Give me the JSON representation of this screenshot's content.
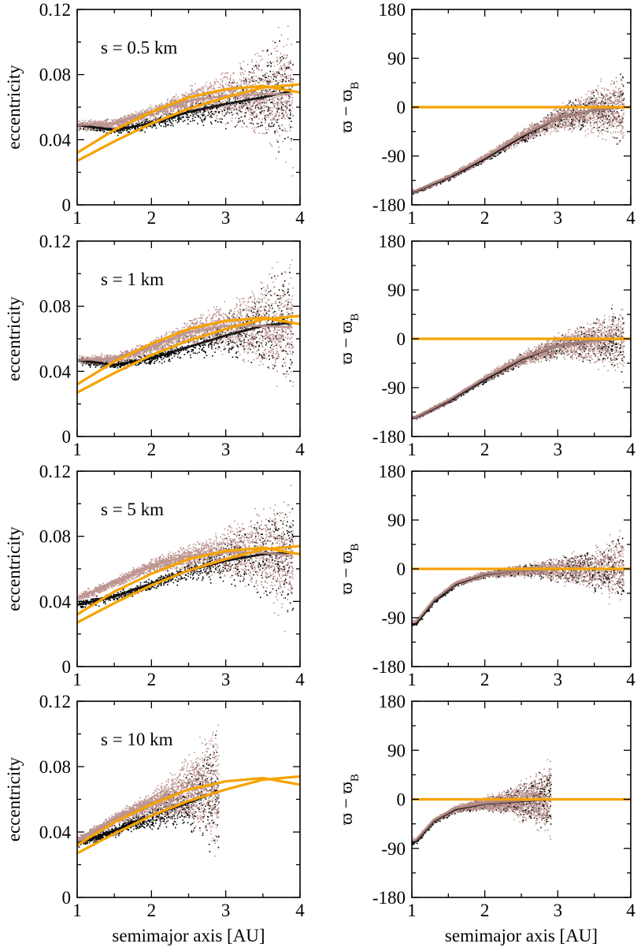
{
  "figure": {
    "xlabel": "semimajor axis  [AU]",
    "colors": {
      "inner_particles": "#000000",
      "outer_particles": "#bc938e",
      "model_curves": "#f5a300"
    }
  },
  "chart_data": [
    {
      "type": "scatter",
      "panel": "ecc-0.5km",
      "title": "s = 0.5 km",
      "xlabel": "semimajor axis  [AU]",
      "ylabel": "eccentricity",
      "xlim": [
        1,
        4
      ],
      "ylim": [
        0,
        0.12
      ],
      "xticks": [
        "1",
        "2",
        "3",
        "4"
      ],
      "yticks": [
        "0",
        "0.04",
        "0.08",
        "0.12"
      ],
      "series": [
        {
          "name": "black particles",
          "x": [
            1.0,
            1.5,
            2.0,
            2.5,
            3.0,
            3.5,
            3.9
          ],
          "y": [
            0.049,
            0.046,
            0.05,
            0.057,
            0.062,
            0.066,
            0.07
          ]
        },
        {
          "name": "pink particles",
          "x": [
            1.0,
            1.5,
            2.0,
            2.5,
            3.0,
            3.5,
            3.9
          ],
          "y": [
            0.049,
            0.05,
            0.057,
            0.064,
            0.067,
            0.068,
            0.068
          ]
        },
        {
          "name": "curve A",
          "x": [
            1.0,
            1.5,
            2.0,
            2.5,
            3.0,
            3.5,
            4.0
          ],
          "y": [
            0.032,
            0.046,
            0.057,
            0.066,
            0.071,
            0.073,
            0.069
          ]
        },
        {
          "name": "curve B",
          "x": [
            1.0,
            1.5,
            2.0,
            2.5,
            3.0,
            3.5,
            4.0
          ],
          "y": [
            0.027,
            0.039,
            0.05,
            0.059,
            0.066,
            0.072,
            0.074
          ]
        }
      ]
    },
    {
      "type": "scatter",
      "panel": "varpi-0.5km",
      "xlabel": "semimajor axis  [AU]",
      "ylabel": "ϖ − ϖ",
      "ylabel_sub": "B",
      "xlim": [
        1,
        4
      ],
      "ylim": [
        -180,
        180
      ],
      "xticks": [
        "1",
        "2",
        "3",
        "4"
      ],
      "yticks": [
        "-180",
        "-90",
        "0",
        "90",
        "180"
      ],
      "series": [
        {
          "name": "black particles",
          "x": [
            1.05,
            1.5,
            2.0,
            2.5,
            3.0,
            3.5,
            3.9
          ],
          "y": [
            -155,
            -130,
            -95,
            -55,
            -20,
            -5,
            0
          ]
        },
        {
          "name": "pink particles",
          "x": [
            1.05,
            1.5,
            2.0,
            2.5,
            3.0,
            3.5,
            3.9
          ],
          "y": [
            -154,
            -128,
            -92,
            -52,
            -20,
            -5,
            0
          ]
        },
        {
          "name": "zero line",
          "x": [
            1.0,
            4.0
          ],
          "y": [
            0,
            0
          ]
        }
      ]
    },
    {
      "type": "scatter",
      "panel": "ecc-1km",
      "title": "s = 1 km",
      "xlabel": "semimajor axis  [AU]",
      "ylabel": "eccentricity",
      "xlim": [
        1,
        4
      ],
      "ylim": [
        0,
        0.12
      ],
      "xticks": [
        "1",
        "2",
        "3",
        "4"
      ],
      "yticks": [
        "0",
        "0.04",
        "0.08",
        "0.12"
      ],
      "series": [
        {
          "name": "black particles",
          "x": [
            1.0,
            1.5,
            2.0,
            2.5,
            3.0,
            3.5,
            3.9
          ],
          "y": [
            0.047,
            0.044,
            0.048,
            0.055,
            0.062,
            0.068,
            0.07
          ]
        },
        {
          "name": "pink particles",
          "x": [
            1.0,
            1.5,
            2.0,
            2.5,
            3.0,
            3.5,
            3.9
          ],
          "y": [
            0.047,
            0.048,
            0.055,
            0.064,
            0.068,
            0.068,
            0.067
          ]
        },
        {
          "name": "curve A",
          "x": [
            1.0,
            1.5,
            2.0,
            2.5,
            3.0,
            3.5,
            4.0
          ],
          "y": [
            0.032,
            0.046,
            0.057,
            0.066,
            0.071,
            0.073,
            0.069
          ]
        },
        {
          "name": "curve B",
          "x": [
            1.0,
            1.5,
            2.0,
            2.5,
            3.0,
            3.5,
            4.0
          ],
          "y": [
            0.027,
            0.039,
            0.05,
            0.059,
            0.066,
            0.072,
            0.074
          ]
        }
      ]
    },
    {
      "type": "scatter",
      "panel": "varpi-1km",
      "xlabel": "semimajor axis  [AU]",
      "ylabel": "ϖ − ϖ",
      "ylabel_sub": "B",
      "xlim": [
        1,
        4
      ],
      "ylim": [
        -180,
        180
      ],
      "xticks": [
        "1",
        "2",
        "3",
        "4"
      ],
      "yticks": [
        "-180",
        "-90",
        "0",
        "90",
        "180"
      ],
      "series": [
        {
          "name": "black particles",
          "x": [
            1.05,
            1.5,
            2.0,
            2.5,
            3.0,
            3.5,
            3.9
          ],
          "y": [
            -145,
            -115,
            -75,
            -38,
            -12,
            -3,
            0
          ]
        },
        {
          "name": "pink particles",
          "x": [
            1.05,
            1.5,
            2.0,
            2.5,
            3.0,
            3.5,
            3.9
          ],
          "y": [
            -144,
            -113,
            -72,
            -36,
            -12,
            -3,
            0
          ]
        },
        {
          "name": "zero line",
          "x": [
            1.0,
            4.0
          ],
          "y": [
            0,
            0
          ]
        }
      ]
    },
    {
      "type": "scatter",
      "panel": "ecc-5km",
      "title": "s = 5 km",
      "xlabel": "semimajor axis  [AU]",
      "ylabel": "eccentricity",
      "xlim": [
        1,
        4
      ],
      "ylim": [
        0,
        0.12
      ],
      "xticks": [
        "1",
        "2",
        "3",
        "4"
      ],
      "yticks": [
        "0",
        "0.04",
        "0.08",
        "0.12"
      ],
      "series": [
        {
          "name": "black particles",
          "x": [
            1.0,
            1.5,
            2.0,
            2.5,
            3.0,
            3.5,
            3.9
          ],
          "y": [
            0.038,
            0.043,
            0.051,
            0.059,
            0.065,
            0.069,
            0.07
          ]
        },
        {
          "name": "pink particles",
          "x": [
            1.0,
            1.5,
            2.0,
            2.5,
            3.0,
            3.5,
            3.9
          ],
          "y": [
            0.042,
            0.052,
            0.062,
            0.068,
            0.07,
            0.07,
            0.068
          ]
        },
        {
          "name": "curve A",
          "x": [
            1.0,
            1.5,
            2.0,
            2.5,
            3.0,
            3.5,
            4.0
          ],
          "y": [
            0.032,
            0.046,
            0.057,
            0.066,
            0.071,
            0.073,
            0.069
          ]
        },
        {
          "name": "curve B",
          "x": [
            1.0,
            1.5,
            2.0,
            2.5,
            3.0,
            3.5,
            4.0
          ],
          "y": [
            0.027,
            0.039,
            0.05,
            0.059,
            0.066,
            0.072,
            0.074
          ]
        }
      ]
    },
    {
      "type": "scatter",
      "panel": "varpi-5km",
      "xlabel": "semimajor axis  [AU]",
      "ylabel": "ϖ − ϖ",
      "ylabel_sub": "B",
      "xlim": [
        1,
        4
      ],
      "ylim": [
        -180,
        180
      ],
      "xticks": [
        "1",
        "2",
        "3",
        "4"
      ],
      "yticks": [
        "-180",
        "-90",
        "0",
        "90",
        "180"
      ],
      "series": [
        {
          "name": "black particles",
          "x": [
            1.05,
            1.3,
            1.6,
            2.0,
            2.5,
            3.0,
            3.9
          ],
          "y": [
            -102,
            -60,
            -28,
            -10,
            -2,
            0,
            0
          ]
        },
        {
          "name": "pink particles",
          "x": [
            1.05,
            1.3,
            1.6,
            2.0,
            2.5,
            3.0,
            3.9
          ],
          "y": [
            -98,
            -57,
            -26,
            -9,
            -2,
            0,
            0
          ]
        },
        {
          "name": "zero line",
          "x": [
            1.0,
            4.0
          ],
          "y": [
            0,
            0
          ]
        }
      ]
    },
    {
      "type": "scatter",
      "panel": "ecc-10km",
      "title": "s = 10 km",
      "xlabel": "semimajor axis  [AU]",
      "ylabel": "eccentricity",
      "xlim": [
        1,
        4
      ],
      "ylim": [
        0,
        0.12
      ],
      "xticks": [
        "1",
        "2",
        "3",
        "4"
      ],
      "yticks": [
        "0",
        "0.04",
        "0.08",
        "0.12"
      ],
      "series": [
        {
          "name": "black particles",
          "x": [
            1.0,
            1.5,
            2.0,
            2.5,
            2.9
          ],
          "y": [
            0.033,
            0.041,
            0.05,
            0.058,
            0.065
          ]
        },
        {
          "name": "pink particles",
          "x": [
            1.0,
            1.5,
            2.0,
            2.5,
            2.9
          ],
          "y": [
            0.035,
            0.048,
            0.058,
            0.066,
            0.07
          ]
        },
        {
          "name": "curve A",
          "x": [
            1.0,
            1.5,
            2.0,
            2.5,
            3.0,
            3.5,
            4.0
          ],
          "y": [
            0.032,
            0.046,
            0.057,
            0.066,
            0.071,
            0.073,
            0.069
          ]
        },
        {
          "name": "curve B",
          "x": [
            1.0,
            1.5,
            2.0,
            2.5,
            3.0,
            3.5,
            4.0
          ],
          "y": [
            0.027,
            0.039,
            0.05,
            0.059,
            0.066,
            0.072,
            0.074
          ]
        }
      ]
    },
    {
      "type": "scatter",
      "panel": "varpi-10km",
      "xlabel": "semimajor axis  [AU]",
      "ylabel": "ϖ − ϖ",
      "ylabel_sub": "B",
      "xlim": [
        1,
        4
      ],
      "ylim": [
        -180,
        180
      ],
      "xticks": [
        "1",
        "2",
        "3",
        "4"
      ],
      "yticks": [
        "-180",
        "-90",
        "0",
        "90",
        "180"
      ],
      "series": [
        {
          "name": "black particles",
          "x": [
            1.05,
            1.3,
            1.6,
            2.0,
            2.5,
            2.9
          ],
          "y": [
            -78,
            -40,
            -18,
            -8,
            -3,
            0
          ]
        },
        {
          "name": "pink particles",
          "x": [
            1.05,
            1.3,
            1.6,
            2.0,
            2.5,
            2.9
          ],
          "y": [
            -75,
            -38,
            -16,
            -7,
            -2,
            0
          ]
        },
        {
          "name": "zero line",
          "x": [
            1.0,
            4.0
          ],
          "y": [
            0,
            0
          ]
        }
      ]
    }
  ]
}
